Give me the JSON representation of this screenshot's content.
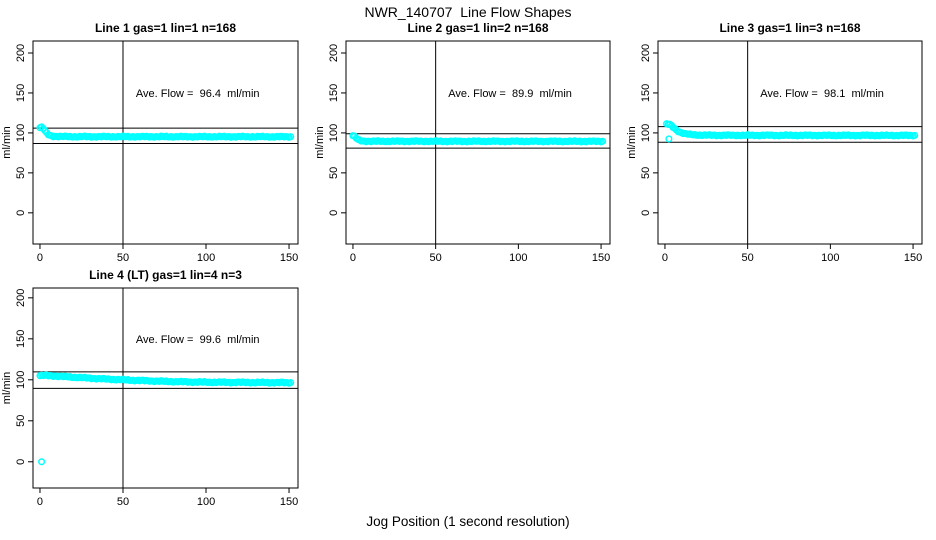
{
  "figure": {
    "title": "NWR_140707  Line Flow Shapes",
    "xlabel": "Jog Position (1 second resolution)",
    "background": "#ffffff",
    "point_color": "#00ffff",
    "line_color": "#000000",
    "text_color": "#000000"
  },
  "chart_data": [
    {
      "type": "scatter",
      "title": "Line 1 gas=1 lin=1 n=168",
      "annotation": "Ave. Flow =  96.4  ml/min",
      "ave_flow": 96.4,
      "n": 168,
      "ylabel": "ml/min",
      "xticks": [
        0,
        50,
        100,
        150
      ],
      "yticks": [
        0,
        50,
        100,
        150,
        200
      ],
      "xlim": [
        -4.2,
        155.4
      ],
      "ylim": [
        -39,
        215
      ],
      "vline_x": 50,
      "hlines": [
        106.0,
        86.8
      ],
      "annotation_pos": [
        95,
        150
      ],
      "marker": "open-circle",
      "series_keypoints": [
        [
          0,
          106.5
        ],
        [
          1,
          107
        ],
        [
          2,
          105.5
        ],
        [
          3,
          102.5
        ],
        [
          4,
          100
        ],
        [
          5,
          98
        ],
        [
          6,
          96.8
        ],
        [
          8,
          95.9
        ],
        [
          12,
          95.5
        ],
        [
          20,
          95.3
        ],
        [
          151,
          95.2
        ]
      ],
      "x_step": 1,
      "extra_points": []
    },
    {
      "type": "scatter",
      "title": "Line 2 gas=1 lin=2 n=168",
      "annotation": "Ave. Flow =  89.9  ml/min",
      "ave_flow": 89.9,
      "n": 168,
      "ylabel": "ml/min",
      "xticks": [
        0,
        50,
        100,
        150
      ],
      "yticks": [
        0,
        50,
        100,
        150,
        200
      ],
      "xlim": [
        -4.2,
        155.4
      ],
      "ylim": [
        -39,
        215
      ],
      "vline_x": 50,
      "hlines": [
        98.9,
        80.9
      ],
      "annotation_pos": [
        95,
        150
      ],
      "marker": "open-circle",
      "series_keypoints": [
        [
          0,
          96.5
        ],
        [
          1,
          95.5
        ],
        [
          2,
          93.5
        ],
        [
          3,
          91.5
        ],
        [
          5,
          90
        ],
        [
          8,
          89.6
        ],
        [
          15,
          89.5
        ],
        [
          151,
          89.4
        ]
      ],
      "x_step": 1,
      "extra_points": []
    },
    {
      "type": "scatter",
      "title": "Line 3 gas=1 lin=3 n=168",
      "annotation": "Ave. Flow =  98.1  ml/min",
      "ave_flow": 98.1,
      "n": 168,
      "ylabel": "ml/min",
      "xticks": [
        0,
        50,
        100,
        150
      ],
      "yticks": [
        0,
        50,
        100,
        150,
        200
      ],
      "xlim": [
        -4.2,
        155.4
      ],
      "ylim": [
        -39,
        215
      ],
      "vline_x": 50,
      "hlines": [
        107.9,
        88.3
      ],
      "annotation_pos": [
        95,
        150
      ],
      "marker": "open-circle",
      "series_keypoints": [
        [
          1,
          111
        ],
        [
          3,
          110.5
        ],
        [
          5,
          107
        ],
        [
          7,
          103.5
        ],
        [
          9,
          101
        ],
        [
          12,
          99
        ],
        [
          16,
          97.8
        ],
        [
          22,
          97.2
        ],
        [
          30,
          97
        ],
        [
          151,
          96.8
        ]
      ],
      "x_step": 1,
      "extra_points": [
        [
          2.4,
          92.5
        ]
      ]
    },
    {
      "type": "scatter",
      "title": "Line 4 (LT) gas=1 lin=4 n=3",
      "annotation": "Ave. Flow =  99.6  ml/min",
      "ave_flow": 99.6,
      "n": 3,
      "ylabel": "ml/min",
      "xticks": [
        0,
        50,
        100,
        150
      ],
      "yticks": [
        0,
        50,
        100,
        150,
        200
      ],
      "xlim": [
        -4.2,
        155.4
      ],
      "ylim": [
        -32,
        212
      ],
      "vline_x": 50,
      "hlines": [
        109.6,
        89.6
      ],
      "annotation_pos": [
        95,
        150
      ],
      "marker": "open-circle",
      "series_keypoints": [
        [
          0,
          105
        ],
        [
          2,
          105.3
        ],
        [
          6,
          105
        ],
        [
          12,
          104.2
        ],
        [
          20,
          103.2
        ],
        [
          30,
          102
        ],
        [
          40,
          100.9
        ],
        [
          50,
          100
        ],
        [
          60,
          99.1
        ],
        [
          70,
          98.4
        ],
        [
          80,
          97.8
        ],
        [
          90,
          97.4
        ],
        [
          100,
          97.1
        ],
        [
          120,
          96.8
        ],
        [
          151,
          96.5
        ]
      ],
      "x_step": 1,
      "extra_points": [
        [
          1,
          0
        ]
      ]
    }
  ]
}
